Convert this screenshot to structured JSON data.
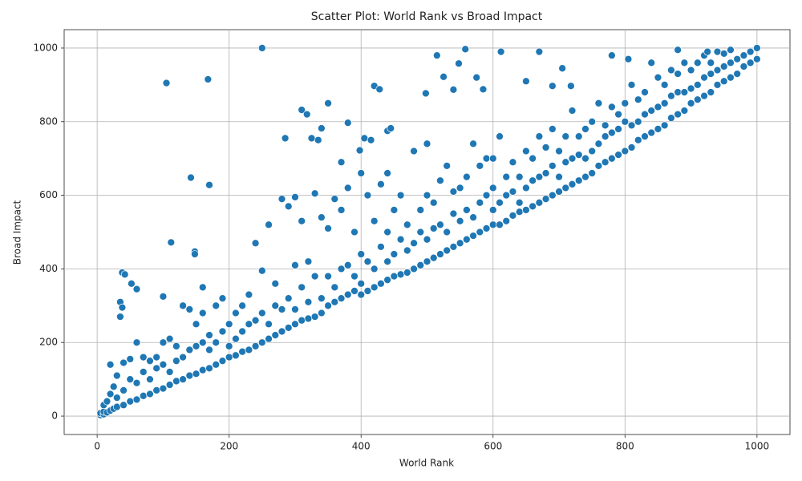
{
  "chart_data": {
    "type": "scatter",
    "title": "Scatter Plot: World Rank vs Broad Impact",
    "x_label": "World Rank",
    "y_label": "Broad Impact",
    "color": "#1f77b4",
    "grid": true,
    "xlim": [
      -50,
      1050
    ],
    "ylim": [
      -50,
      1050
    ],
    "xticks": [
      0,
      200,
      400,
      600,
      800,
      1000
    ],
    "yticks": [
      0,
      200,
      400,
      600,
      800,
      1000
    ],
    "x": [
      5,
      5,
      10,
      10,
      10,
      15,
      15,
      20,
      20,
      20,
      25,
      25,
      30,
      30,
      30,
      40,
      40,
      40,
      50,
      50,
      50,
      60,
      60,
      60,
      70,
      70,
      70,
      80,
      80,
      80,
      90,
      90,
      90,
      100,
      100,
      100,
      100,
      110,
      110,
      110,
      120,
      120,
      120,
      130,
      130,
      130,
      140,
      140,
      140,
      150,
      150,
      150,
      160,
      160,
      160,
      160,
      170,
      170,
      170,
      180,
      180,
      180,
      190,
      190,
      190,
      200,
      200,
      200,
      210,
      210,
      210,
      220,
      220,
      220,
      230,
      230,
      230,
      240,
      240,
      240,
      250,
      250,
      250,
      260,
      260,
      260,
      270,
      270,
      270,
      280,
      280,
      280,
      290,
      290,
      290,
      300,
      300,
      300,
      300,
      310,
      310,
      310,
      320,
      320,
      320,
      330,
      330,
      330,
      340,
      340,
      340,
      350,
      350,
      350,
      360,
      360,
      360,
      370,
      370,
      370,
      380,
      380,
      380,
      390,
      390,
      390,
      400,
      400,
      400,
      400,
      410,
      410,
      410,
      420,
      420,
      420,
      430,
      430,
      430,
      440,
      440,
      440,
      440,
      450,
      450,
      450,
      460,
      460,
      460,
      470,
      470,
      470,
      480,
      480,
      480,
      490,
      490,
      490,
      500,
      500,
      500,
      500,
      510,
      510,
      510,
      520,
      520,
      520,
      530,
      530,
      530,
      540,
      540,
      540,
      550,
      550,
      550,
      560,
      560,
      560,
      570,
      570,
      570,
      580,
      580,
      580,
      590,
      590,
      590,
      600,
      600,
      600,
      600,
      610,
      610,
      610,
      620,
      620,
      620,
      630,
      630,
      630,
      640,
      640,
      640,
      650,
      650,
      650,
      660,
      660,
      660,
      670,
      670,
      670,
      680,
      680,
      680,
      690,
      690,
      690,
      700,
      700,
      700,
      710,
      710,
      710,
      720,
      720,
      720,
      730,
      730,
      730,
      740,
      740,
      740,
      750,
      750,
      750,
      760,
      760,
      760,
      770,
      770,
      770,
      780,
      780,
      780,
      790,
      790,
      790,
      800,
      800,
      800,
      810,
      810,
      810,
      820,
      820,
      820,
      830,
      830,
      830,
      840,
      840,
      840,
      850,
      850,
      850,
      860,
      860,
      860,
      870,
      870,
      870,
      880,
      880,
      880,
      890,
      890,
      890,
      900,
      900,
      900,
      910,
      910,
      910,
      920,
      920,
      920,
      930,
      930,
      930,
      940,
      940,
      940,
      950,
      950,
      950,
      960,
      960,
      960,
      970,
      970,
      980,
      980,
      990,
      990,
      1000,
      250,
      105,
      168,
      142,
      170,
      112,
      148,
      148,
      38,
      42,
      35,
      38,
      35,
      60,
      52,
      285,
      310,
      318,
      350,
      340,
      335,
      325,
      370,
      380,
      420,
      428,
      405,
      415,
      398,
      440,
      445,
      498,
      515,
      525,
      540,
      548,
      558,
      575,
      612,
      670,
      585,
      650,
      705,
      690,
      718,
      780,
      805,
      880,
      925,
      1000
    ],
    "values": [
      3,
      8,
      5,
      12,
      30,
      10,
      40,
      15,
      60,
      140,
      20,
      80,
      25,
      50,
      110,
      30,
      70,
      145,
      40,
      100,
      155,
      45,
      90,
      200,
      55,
      120,
      160,
      60,
      100,
      150,
      70,
      130,
      160,
      75,
      140,
      200,
      325,
      85,
      120,
      210,
      95,
      150,
      190,
      100,
      160,
      300,
      110,
      180,
      290,
      115,
      190,
      250,
      125,
      200,
      280,
      350,
      130,
      180,
      220,
      140,
      200,
      300,
      150,
      230,
      320,
      160,
      190,
      250,
      165,
      210,
      280,
      175,
      230,
      300,
      180,
      250,
      330,
      190,
      260,
      470,
      200,
      280,
      395,
      210,
      250,
      520,
      220,
      300,
      360,
      230,
      290,
      590,
      240,
      320,
      570,
      250,
      290,
      410,
      595,
      260,
      350,
      530,
      265,
      310,
      420,
      270,
      380,
      605,
      280,
      320,
      540,
      300,
      380,
      510,
      310,
      350,
      590,
      320,
      400,
      560,
      330,
      410,
      620,
      340,
      380,
      500,
      330,
      360,
      440,
      660,
      340,
      420,
      600,
      350,
      400,
      530,
      360,
      460,
      630,
      370,
      420,
      500,
      660,
      380,
      440,
      560,
      385,
      480,
      600,
      390,
      450,
      520,
      400,
      470,
      720,
      410,
      500,
      560,
      420,
      480,
      600,
      740,
      430,
      510,
      580,
      440,
      520,
      640,
      450,
      500,
      680,
      460,
      550,
      610,
      470,
      530,
      620,
      480,
      560,
      650,
      490,
      540,
      740,
      500,
      580,
      680,
      510,
      600,
      700,
      520,
      560,
      620,
      700,
      520,
      580,
      760,
      530,
      600,
      650,
      545,
      610,
      690,
      555,
      580,
      650,
      560,
      620,
      720,
      570,
      640,
      700,
      580,
      650,
      760,
      590,
      660,
      730,
      600,
      680,
      780,
      610,
      650,
      720,
      620,
      690,
      760,
      630,
      700,
      830,
      640,
      710,
      760,
      650,
      700,
      780,
      660,
      720,
      800,
      680,
      740,
      850,
      690,
      760,
      790,
      700,
      770,
      840,
      710,
      780,
      820,
      720,
      800,
      850,
      730,
      790,
      900,
      750,
      800,
      860,
      760,
      820,
      880,
      770,
      830,
      960,
      780,
      840,
      920,
      790,
      850,
      900,
      810,
      870,
      940,
      820,
      880,
      930,
      830,
      880,
      960,
      850,
      890,
      940,
      860,
      900,
      960,
      870,
      920,
      980,
      880,
      930,
      960,
      900,
      940,
      990,
      910,
      950,
      985,
      920,
      960,
      995,
      930,
      970,
      950,
      980,
      960,
      990,
      970,
      1000,
      905,
      915,
      648,
      628,
      472,
      447,
      440,
      390,
      385,
      310,
      295,
      270,
      345,
      360,
      755,
      832,
      820,
      850,
      782,
      750,
      755,
      690,
      797,
      897,
      888,
      755,
      750,
      722,
      775,
      782,
      877,
      980,
      922,
      887,
      958,
      997,
      920,
      990,
      990,
      888,
      910,
      945,
      897,
      897,
      980,
      970,
      995,
      990,
      1000
    ]
  }
}
